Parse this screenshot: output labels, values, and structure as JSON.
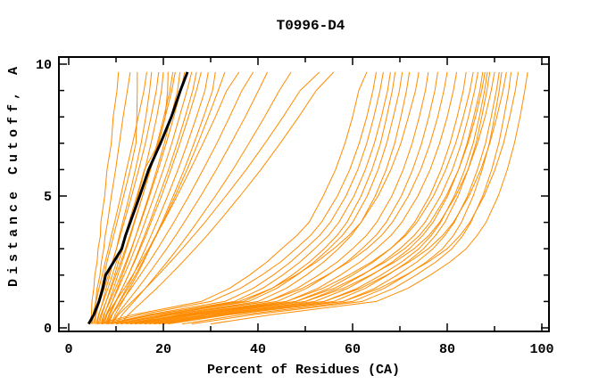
{
  "chart_data": {
    "type": "line",
    "title": "T0996-D4",
    "xlabel": "Percent of Residues (CA)",
    "ylabel": "Distance Cutoff, A",
    "xlim": [
      0,
      100
    ],
    "ylim": [
      0,
      10
    ],
    "x_major_ticks": [
      0,
      20,
      40,
      60,
      80,
      100
    ],
    "x_minor_ticks": [
      10,
      30,
      50,
      70,
      90
    ],
    "y_major_ticks": [
      0,
      5,
      10
    ],
    "y_minor_ticks": [
      1,
      2,
      3,
      4,
      6,
      7,
      8,
      9
    ],
    "grid": false,
    "legend": false,
    "line_color": "#ff8c00",
    "highlight_color": "#000000",
    "frame_color": "#000000",
    "background_color": "#ffffff",
    "dist_grid": [
      0.15,
      0.5,
      1,
      1.5,
      2,
      2.5,
      3,
      3.5,
      4,
      5,
      6,
      7,
      8,
      9,
      9.7
    ],
    "series": [
      {
        "x": [
          4.5,
          4.8,
          4.9,
          5.3,
          5.5,
          6.0,
          6.2,
          6.7,
          6.8,
          7.6,
          8.1,
          9.0,
          9.4,
          10.2,
          10.5
        ]
      },
      {
        "x": [
          5.0,
          5.2,
          5.7,
          6.0,
          6.6,
          6.9,
          7.4,
          7.7,
          8.2,
          9.0,
          9.9,
          10.7,
          11.5,
          12.4,
          13.0
        ]
      },
      {
        "x": [
          5.5,
          5.8,
          6.3,
          6.9,
          7.5,
          8.1,
          8.8,
          9.5,
          10.2,
          11.6,
          13.0,
          14.2,
          14.4,
          14.5,
          14.5
        ]
      },
      {
        "x": [
          4.8,
          5.1,
          5.8,
          6.4,
          7.1,
          7.7,
          8.4,
          9.0,
          9.7,
          11.0,
          12.2,
          13.5,
          14.7,
          15.9,
          16.5
        ]
      },
      {
        "x": [
          6.0,
          6.4,
          7.2,
          7.9,
          8.7,
          9.3,
          10.1,
          10.7,
          11.4,
          12.8,
          14.1,
          15.3,
          16.3,
          17.1,
          17.5
        ]
      },
      {
        "x": [
          5.2,
          5.7,
          6.6,
          7.5,
          8.4,
          9.2,
          10.1,
          10.9,
          11.7,
          13.3,
          14.8,
          16.2,
          17.4,
          18.5,
          19.0
        ]
      },
      {
        "x": [
          6.5,
          7.0,
          7.9,
          8.8,
          9.7,
          10.5,
          11.4,
          12.2,
          13.0,
          14.6,
          16.1,
          17.4,
          18.6,
          19.6,
          20.0
        ]
      },
      {
        "x": [
          5.8,
          6.3,
          7.3,
          8.3,
          9.2,
          10.1,
          11.0,
          11.9,
          12.7,
          14.4,
          16.0,
          19.0,
          20.4,
          20.9,
          21.0
        ]
      },
      {
        "x": [
          7.0,
          7.5,
          8.5,
          9.5,
          10.4,
          11.3,
          12.2,
          13.1,
          13.9,
          15.6,
          17.2,
          18.7,
          20.1,
          21.4,
          22.0
        ]
      },
      {
        "x": [
          6.2,
          6.8,
          7.9,
          9.0,
          10.0,
          11.0,
          12.0,
          12.9,
          13.8,
          15.6,
          17.3,
          18.9,
          20.4,
          21.8,
          22.5
        ]
      },
      {
        "x": [
          7.5,
          8.1,
          9.2,
          10.3,
          11.3,
          12.3,
          13.3,
          14.2,
          15.1,
          16.9,
          18.6,
          20.2,
          21.6,
          23.0,
          23.5
        ]
      },
      {
        "x": [
          6.8,
          7.4,
          8.7,
          9.9,
          11.0,
          12.1,
          13.2,
          14.2,
          15.2,
          17.1,
          18.9,
          20.6,
          22.2,
          23.7,
          24.5
        ]
      },
      {
        "x": [
          7.2,
          7.9,
          9.2,
          10.5,
          11.7,
          12.9,
          14.0,
          15.1,
          16.1,
          18.1,
          20.0,
          21.8,
          23.4,
          25.0,
          26.0
        ]
      },
      {
        "x": [
          8.0,
          8.7,
          10.0,
          11.3,
          12.6,
          13.8,
          14.9,
          16.0,
          17.1,
          19.1,
          21.1,
          22.9,
          24.6,
          26.2,
          27.0
        ]
      },
      {
        "x": [
          7.8,
          8.5,
          9.9,
          11.3,
          12.6,
          13.9,
          15.1,
          16.3,
          17.4,
          19.6,
          21.6,
          23.5,
          25.3,
          27.0,
          28.0
        ]
      },
      {
        "x": [
          8.5,
          9.2,
          10.7,
          12.2,
          13.6,
          14.9,
          16.2,
          17.4,
          18.6,
          20.9,
          23.1,
          25.1,
          27.0,
          28.8,
          29.5
        ]
      },
      {
        "x": [
          9.0,
          9.8,
          11.4,
          12.9,
          14.4,
          15.8,
          17.1,
          18.4,
          19.7,
          22.1,
          24.4,
          26.5,
          28.5,
          30.4,
          31.0
        ]
      },
      {
        "x": [
          8.2,
          9.1,
          10.8,
          12.5,
          14.1,
          15.6,
          17.1,
          18.5,
          19.9,
          22.5,
          25.0,
          27.3,
          29.5,
          31.6,
          33.0
        ]
      },
      {
        "x": [
          7.0,
          8.0,
          9.9,
          11.8,
          13.5,
          15.2,
          16.9,
          18.4,
          20.0,
          22.9,
          25.7,
          28.4,
          31.0,
          33.4,
          36.0
        ]
      },
      {
        "x": [
          8.0,
          9.1,
          11.2,
          13.2,
          15.1,
          17.0,
          18.8,
          20.5,
          22.2,
          25.4,
          28.4,
          31.3,
          34.0,
          36.6,
          39.0
        ]
      },
      {
        "x": [
          9.0,
          10.2,
          12.4,
          14.6,
          16.7,
          18.7,
          20.7,
          22.6,
          24.4,
          27.9,
          31.2,
          34.3,
          37.3,
          40.1,
          42.0
        ]
      },
      {
        "x": [
          10.0,
          11.3,
          13.8,
          16.2,
          18.5,
          20.8,
          23.0,
          25.1,
          27.1,
          31.0,
          34.7,
          38.1,
          41.4,
          44.5,
          47.0
        ]
      },
      {
        "x": [
          9.0,
          10.5,
          13.4,
          16.2,
          18.9,
          21.5,
          24.0,
          26.4,
          28.8,
          33.2,
          37.5,
          41.5,
          45.3,
          48.9,
          53.0
        ]
      },
      {
        "x": [
          11.0,
          12.6,
          15.6,
          18.6,
          21.4,
          24.1,
          26.7,
          29.2,
          31.6,
          36.2,
          40.6,
          44.7,
          48.6,
          52.3,
          56.0
        ]
      },
      {
        "x": [
          6.0,
          13.7,
          28.0,
          34.0,
          38.2,
          41.9,
          45.0,
          48.2,
          50.8,
          53.8,
          56.4,
          58.4,
          60.0,
          61.3,
          63.0
        ]
      },
      {
        "x": [
          7.0,
          15.1,
          30.0,
          36.3,
          40.8,
          44.8,
          48.0,
          51.1,
          53.4,
          56.8,
          59.4,
          61.4,
          63.0,
          64.3,
          65.0
        ]
      },
      {
        "x": [
          8.0,
          16.8,
          33.0,
          39.0,
          43.2,
          46.9,
          50.0,
          53.0,
          55.3,
          58.6,
          61.1,
          63.0,
          64.5,
          65.8,
          66.5
        ]
      },
      {
        "x": [
          9.0,
          18.1,
          35.0,
          41.0,
          45.2,
          48.9,
          52.0,
          54.9,
          57.1,
          60.3,
          62.7,
          64.6,
          66.1,
          67.4,
          68.0
        ]
      },
      {
        "x": [
          10.0,
          19.5,
          37.0,
          43.0,
          47.2,
          50.9,
          54.0,
          56.7,
          58.8,
          61.8,
          64.1,
          65.9,
          67.2,
          68.4,
          69.0
        ]
      },
      {
        "x": [
          11.0,
          20.5,
          38.0,
          44.0,
          48.2,
          51.9,
          55.0,
          57.8,
          60.0,
          63.1,
          65.4,
          67.2,
          68.6,
          69.9,
          70.5
        ]
      },
      {
        "x": [
          12.0,
          21.8,
          40.0,
          46.0,
          50.2,
          53.9,
          57.0,
          59.7,
          61.8,
          64.8,
          67.1,
          68.9,
          70.2,
          71.4,
          72.0
        ]
      },
      {
        "x": [
          8.0,
          17.8,
          36.0,
          43.0,
          48.0,
          52.4,
          56.0,
          59.2,
          61.8,
          65.4,
          68.1,
          70.2,
          71.8,
          73.3,
          74.0
        ]
      },
      {
        "x": [
          13.0,
          23.2,
          42.0,
          48.3,
          52.8,
          56.8,
          60.0,
          62.9,
          65.1,
          68.3,
          70.7,
          72.6,
          74.1,
          75.4,
          76.0
        ]
      },
      {
        "x": [
          14.0,
          24.5,
          44.0,
          50.3,
          54.8,
          58.8,
          62.0,
          64.9,
          67.1,
          70.3,
          72.7,
          74.6,
          76.1,
          77.4,
          78.0
        ]
      },
      {
        "x": [
          10.0,
          21.2,
          42.0,
          49.4,
          54.6,
          59.2,
          63.0,
          66.1,
          68.4,
          71.8,
          74.4,
          76.4,
          78.0,
          79.3,
          80.0
        ]
      },
      {
        "x": [
          15.0,
          25.9,
          46.0,
          52.7,
          57.4,
          61.6,
          65.0,
          68.1,
          70.4,
          73.8,
          76.4,
          78.4,
          80.0,
          81.3,
          82.0
        ]
      },
      {
        "x": [
          16.0,
          27.2,
          48.0,
          55.0,
          60.0,
          64.4,
          68.0,
          70.9,
          73.1,
          76.3,
          78.7,
          80.6,
          82.1,
          83.4,
          84.0
        ]
      },
      {
        "x": [
          12.0,
          23.9,
          46.0,
          53.7,
          59.2,
          64.0,
          68.0,
          71.2,
          73.6,
          77.1,
          79.7,
          81.8,
          83.4,
          84.8,
          85.5
        ]
      },
      {
        "x": [
          17.0,
          28.6,
          50.0,
          57.0,
          62.0,
          66.4,
          70.0,
          73.0,
          75.3,
          78.6,
          81.1,
          83.0,
          84.5,
          85.8,
          86.5
        ]
      },
      {
        "x": [
          18.0,
          29.9,
          52.0,
          59.0,
          64.0,
          68.4,
          72.0,
          74.8,
          77.0,
          80.1,
          82.4,
          84.2,
          85.6,
          86.9,
          87.5
        ]
      },
      {
        "x": [
          13.0,
          25.3,
          48.0,
          56.1,
          61.8,
          66.9,
          71.0,
          74.1,
          76.4,
          79.8,
          82.4,
          84.4,
          86.0,
          87.3,
          88.0
        ]
      },
      {
        "x": [
          19.0,
          31.3,
          54.0,
          61.0,
          66.0,
          70.4,
          74.0,
          76.6,
          78.6,
          81.5,
          83.7,
          85.5,
          86.8,
          87.9,
          88.5
        ]
      },
      {
        "x": [
          20.0,
          32.6,
          56.0,
          62.7,
          67.4,
          71.6,
          75.0,
          77.5,
          79.5,
          82.3,
          84.4,
          86.1,
          87.3,
          88.4,
          89.0
        ]
      },
      {
        "x": [
          14.0,
          26.6,
          50.0,
          58.1,
          63.8,
          68.9,
          73.0,
          76.1,
          78.4,
          81.8,
          84.4,
          86.4,
          88.0,
          89.3,
          90.0
        ]
      },
      {
        "x": [
          21.0,
          34.0,
          58.0,
          64.7,
          69.4,
          73.6,
          77.0,
          79.5,
          81.5,
          84.3,
          86.4,
          88.1,
          89.3,
          90.4,
          91.0
        ]
      },
      {
        "x": [
          24.0,
          36.6,
          60.0,
          66.7,
          71.4,
          75.6,
          79.0,
          81.3,
          83.0,
          85.5,
          87.4,
          88.9,
          90.0,
          91.0,
          91.5
        ]
      },
      {
        "x": [
          16.0,
          29.3,
          54.0,
          61.7,
          67.2,
          72.0,
          76.0,
          79.0,
          81.3,
          84.6,
          87.1,
          89.0,
          90.5,
          91.8,
          92.5
        ]
      },
      {
        "x": [
          26.0,
          38.9,
          62.0,
          68.7,
          73.4,
          77.6,
          81.0,
          83.3,
          85.0,
          87.5,
          89.4,
          90.9,
          92.0,
          93.0,
          93.5
        ]
      },
      {
        "x": [
          18.0,
          32.0,
          58.0,
          65.7,
          71.2,
          76.0,
          80.0,
          82.7,
          84.8,
          87.8,
          90.1,
          91.9,
          93.2,
          94.4,
          95.0
        ]
      },
      {
        "x": [
          30.0,
          42.8,
          65.0,
          71.7,
          76.4,
          80.6,
          84.0,
          86.3,
          88.2,
          90.8,
          92.7,
          94.2,
          95.4,
          96.4,
          97.0
        ]
      },
      {
        "highlight": true,
        "x": [
          4.2,
          5.3,
          6.4,
          7.2,
          7.8,
          9.5,
          11.2,
          12.0,
          13.0,
          15.0,
          16.9,
          19.4,
          21.7,
          23.6,
          25.1
        ]
      }
    ]
  }
}
